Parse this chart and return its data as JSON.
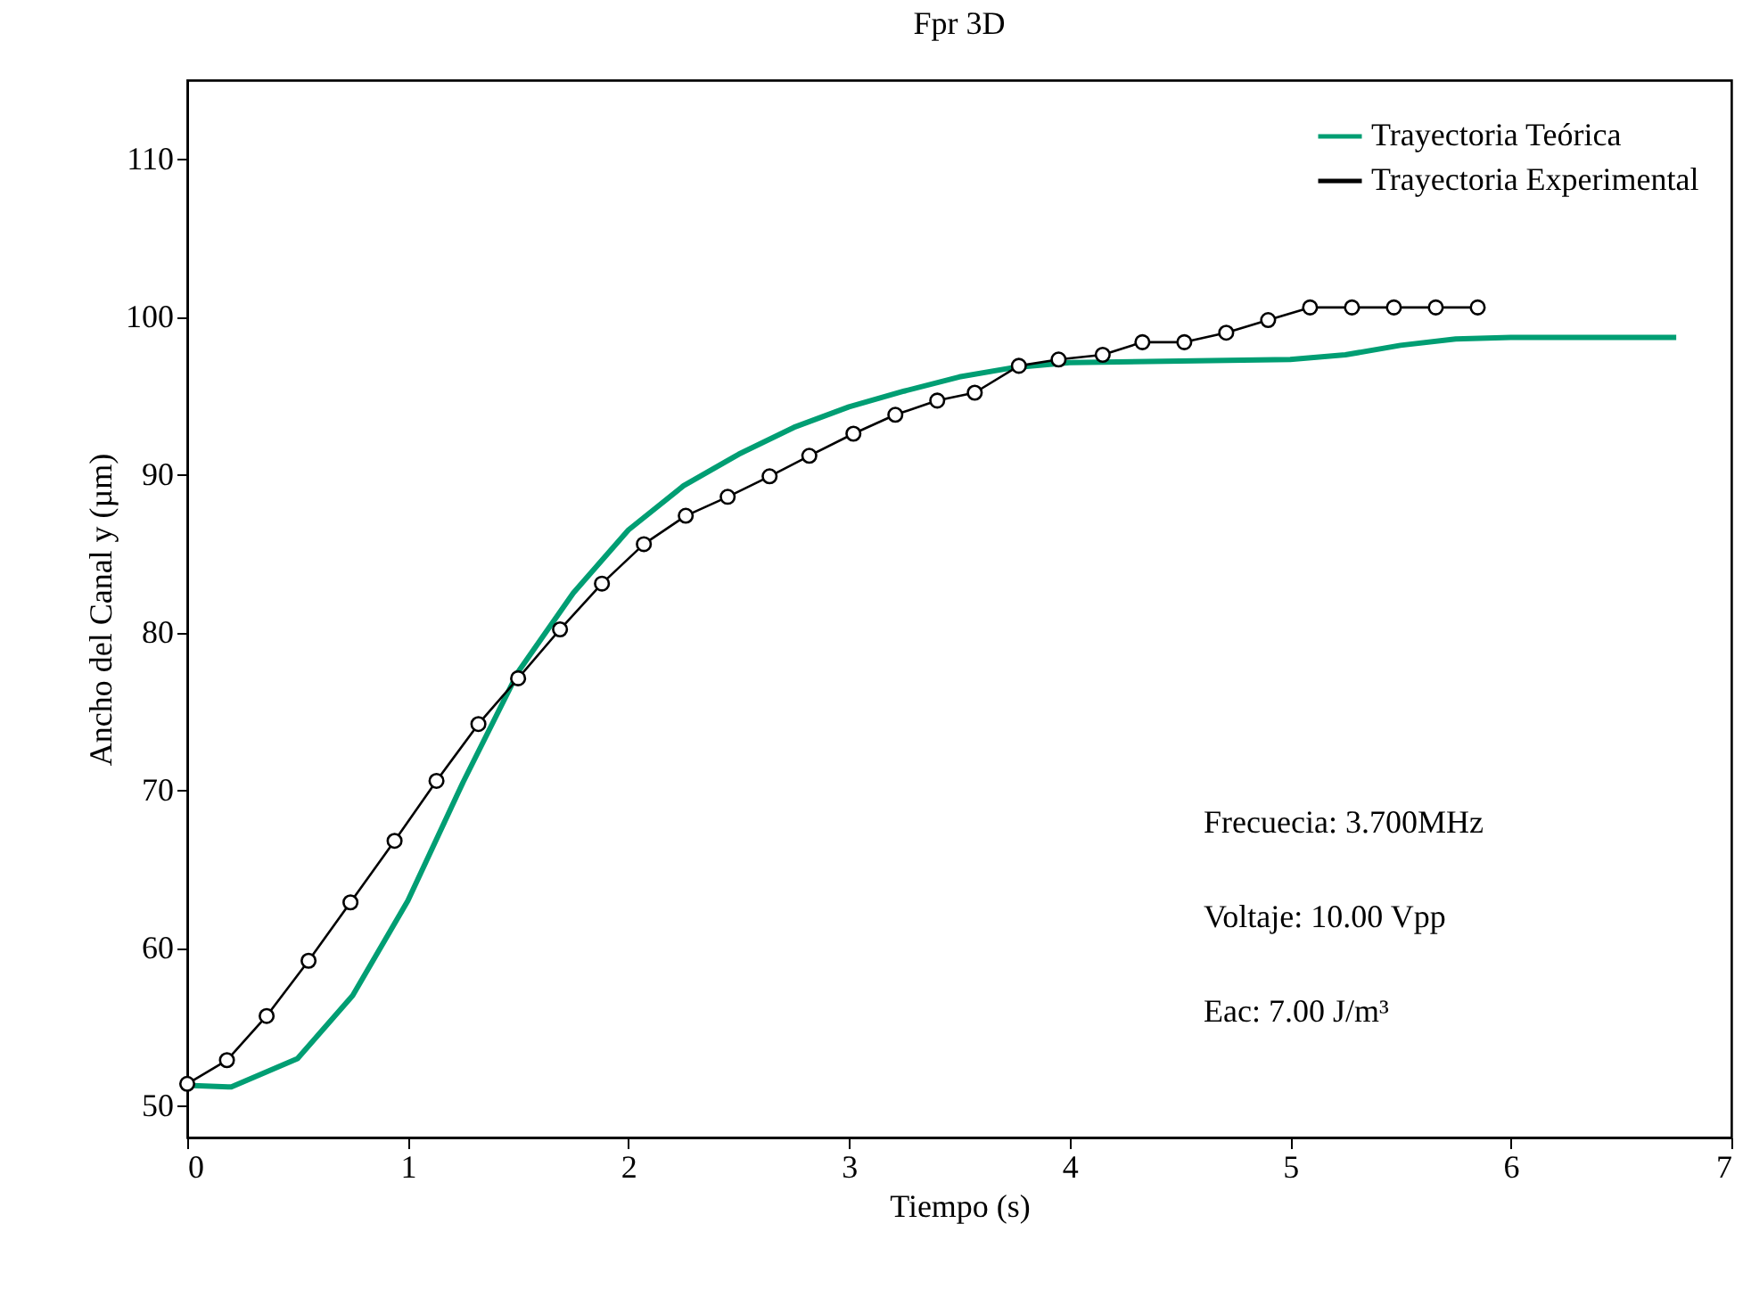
{
  "chart_data": {
    "type": "line",
    "title": "Fpr 3D",
    "xlabel": "Tiempo (s)",
    "ylabel": "Ancho del Canal y (µm)",
    "xlim": [
      0,
      7
    ],
    "xticks": [
      0,
      1,
      2,
      3,
      4,
      5,
      6,
      7
    ],
    "ylim": [
      48,
      115
    ],
    "yticks": [
      50,
      60,
      70,
      80,
      90,
      100,
      110
    ],
    "grid": false,
    "legend": "top right",
    "annotations": [
      "Frecuecia: 3.700MHz",
      "Voltaje: 10.00 Vpp",
      "Eac: 7.00 J/m³"
    ],
    "series": [
      {
        "name": "Trayectoria Teórica",
        "color": "#009e73",
        "marker": "none",
        "x": [
          0,
          0.2,
          0.5,
          0.75,
          1,
          1.25,
          1.5,
          1.75,
          2,
          2.25,
          2.5,
          2.75,
          3,
          3.25,
          3.5,
          3.75,
          4,
          4.5,
          5,
          5.25,
          5.5,
          5.75,
          6,
          6.75
        ],
        "values": [
          51.3,
          51.2,
          53,
          57,
          63,
          70.5,
          77.5,
          82.5,
          86.5,
          89.3,
          91.3,
          93,
          94.3,
          95.3,
          96.2,
          96.8,
          97.1,
          97.2,
          97.3,
          97.6,
          98.2,
          98.6,
          98.7,
          98.7
        ]
      },
      {
        "name": "Trayectoria Experimental",
        "color": "#000000",
        "marker": "circle",
        "x": [
          0,
          0.18,
          0.36,
          0.55,
          0.74,
          0.94,
          1.13,
          1.32,
          1.5,
          1.69,
          1.88,
          2.07,
          2.26,
          2.45,
          2.64,
          2.82,
          3.02,
          3.21,
          3.4,
          3.57,
          3.77,
          3.95,
          4.15,
          4.33,
          4.52,
          4.71,
          4.9,
          5.09,
          5.28,
          5.47,
          5.66,
          5.85
        ],
        "values": [
          51.4,
          52.9,
          55.7,
          59.2,
          62.9,
          66.8,
          70.6,
          74.2,
          77.1,
          80.2,
          83.1,
          85.6,
          87.4,
          88.6,
          89.9,
          91.2,
          92.6,
          93.8,
          94.7,
          95.2,
          96.9,
          97.3,
          97.6,
          98.4,
          98.4,
          99.0,
          99.8,
          100.6,
          100.6,
          100.6,
          100.6,
          100.6
        ]
      }
    ]
  }
}
